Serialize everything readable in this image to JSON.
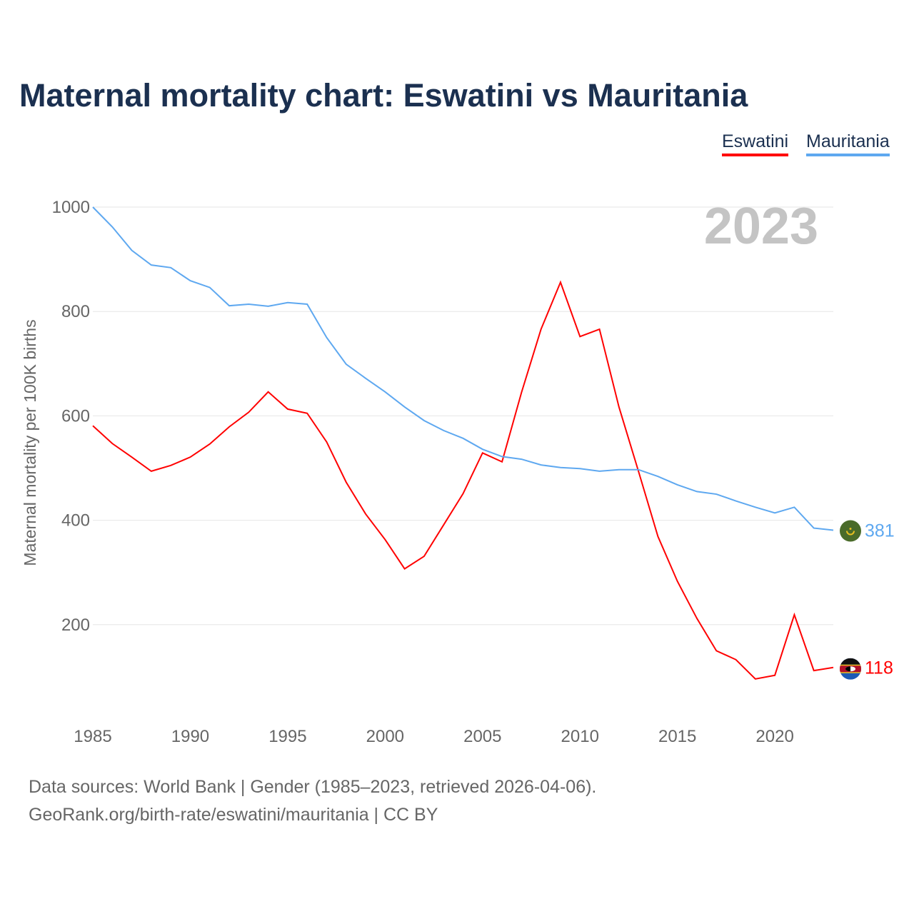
{
  "title": "Maternal mortality chart: Eswatini vs Mauritania",
  "footer": {
    "line1": "Data sources: World Bank | Gender (1985–2023, retrieved 2026-04-06).",
    "line2": "GeoRank.org/birth-rate/eswatini/mauritania | CC BY"
  },
  "chart_data": {
    "type": "line",
    "title": "Maternal mortality chart: Eswatini vs Mauritania",
    "ylabel": "Maternal mortality per 100K births",
    "xlabel": "",
    "year_label": "2023",
    "xlim": [
      1985,
      2023
    ],
    "ylim": [
      0,
      1000
    ],
    "xticks": [
      1985,
      1990,
      1995,
      2000,
      2005,
      2010,
      2015,
      2020
    ],
    "yticks": [
      200,
      400,
      600,
      800,
      1000
    ],
    "grid": true,
    "legend_position": "top-right",
    "x": [
      1985,
      1986,
      1987,
      1988,
      1989,
      1990,
      1991,
      1992,
      1993,
      1994,
      1995,
      1996,
      1997,
      1998,
      1999,
      2000,
      2001,
      2002,
      2003,
      2004,
      2005,
      2006,
      2007,
      2008,
      2009,
      2010,
      2011,
      2012,
      2013,
      2014,
      2015,
      2016,
      2017,
      2018,
      2019,
      2020,
      2021,
      2022,
      2023
    ],
    "series": [
      {
        "name": "Eswatini",
        "color": "#ff0000",
        "end_label": "118",
        "flag": "eswatini-flag",
        "values": [
          581,
          547,
          521,
          494,
          505,
          521,
          546,
          579,
          607,
          646,
          613,
          605,
          550,
          473,
          412,
          363,
          307,
          331,
          391,
          451,
          529,
          512,
          645,
          766,
          856,
          752,
          766,
          617,
          494,
          369,
          283,
          212,
          150,
          133,
          96,
          103,
          219,
          112,
          118
        ]
      },
      {
        "name": "Mauritania",
        "color": "#5ea8f0",
        "end_label": "381",
        "flag": "mauritania-flag",
        "values": [
          1000,
          962,
          917,
          889,
          884,
          859,
          846,
          811,
          814,
          810,
          817,
          814,
          750,
          699,
          672,
          646,
          617,
          591,
          572,
          557,
          536,
          522,
          517,
          506,
          501,
          499,
          494,
          497,
          497,
          484,
          468,
          455,
          450,
          437,
          425,
          414,
          425,
          385,
          381
        ]
      }
    ]
  }
}
